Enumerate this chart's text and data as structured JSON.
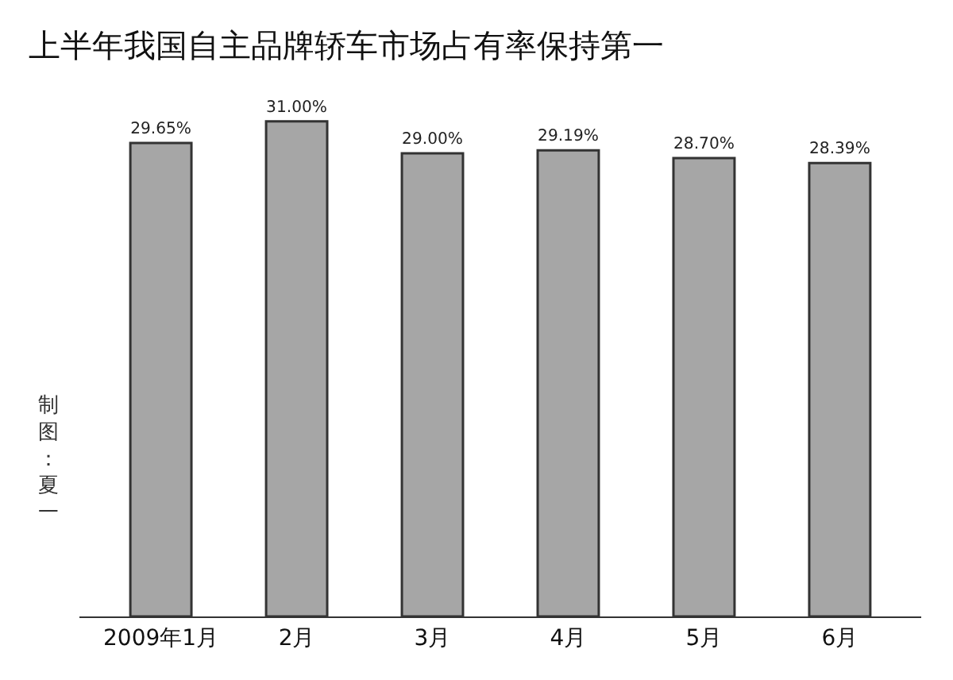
{
  "chart_data": {
    "type": "bar",
    "title": "上半年我国自主品牌轿车市场占有率保持第一",
    "categories": [
      "2009年1月",
      "2月",
      "3月",
      "4月",
      "5月",
      "6月"
    ],
    "values": [
      29.65,
      31.0,
      29.0,
      29.19,
      28.7,
      28.39
    ],
    "value_labels": [
      "29.65%",
      "31.00%",
      "29.00%",
      "29.19%",
      "28.70%",
      "28.39%"
    ],
    "color": "#a6a6a6",
    "annotations": [
      "制图：夏一"
    ]
  }
}
